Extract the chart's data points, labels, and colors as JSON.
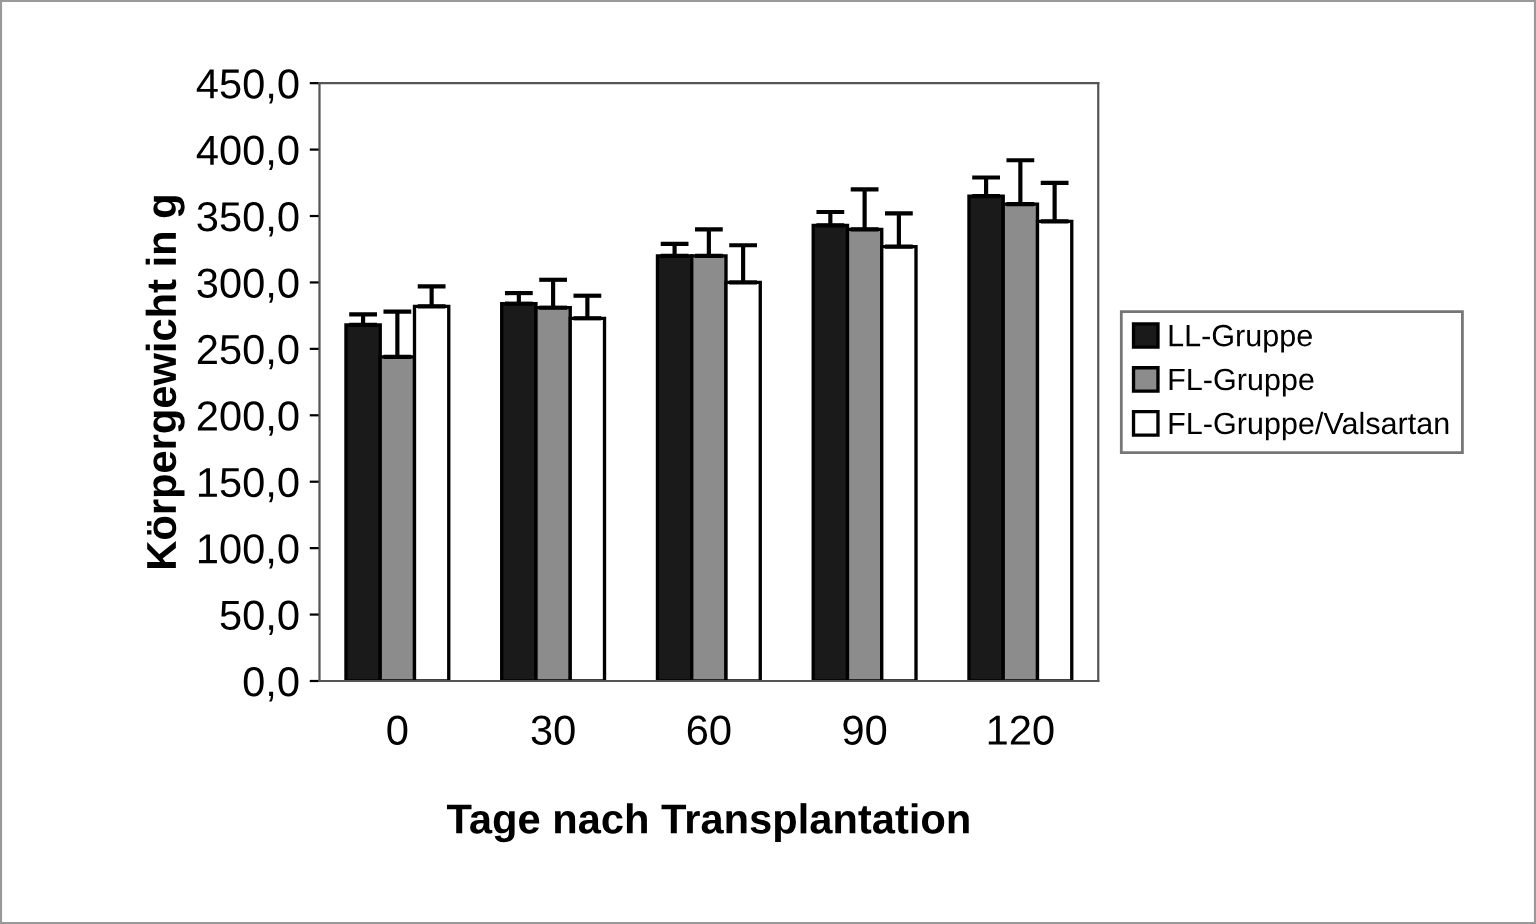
{
  "chart_data": {
    "type": "bar",
    "xlabel": "Tage nach Transplantation",
    "ylabel": "Körpergewicht in g",
    "categories": [
      "0",
      "30",
      "60",
      "90",
      "120"
    ],
    "series": [
      {
        "name": "LL-Gruppe",
        "color": "#1a1a1a",
        "values": [
          268,
          284,
          320,
          343,
          365
        ],
        "errors": [
          [
            268,
            276
          ],
          [
            284,
            292
          ],
          [
            320,
            329
          ],
          [
            343,
            353
          ],
          [
            365,
            379
          ]
        ]
      },
      {
        "name": "FL-Gruppe",
        "color": "#8c8c8c",
        "values": [
          244,
          281,
          320,
          340,
          359
        ],
        "errors": [
          [
            244,
            278
          ],
          [
            281,
            302
          ],
          [
            320,
            340
          ],
          [
            340,
            370
          ],
          [
            359,
            392
          ]
        ]
      },
      {
        "name": "FL-Gruppe/Valsartan",
        "color": "#ffffff",
        "values": [
          282,
          273,
          300,
          327,
          346
        ],
        "errors": [
          [
            282,
            297
          ],
          [
            273,
            290
          ],
          [
            300,
            328
          ],
          [
            327,
            352
          ],
          [
            346,
            375
          ]
        ]
      }
    ],
    "ylim": [
      0,
      450
    ],
    "yticks": [
      {
        "value": 0,
        "label": "0,0"
      },
      {
        "value": 50,
        "label": "50,0"
      },
      {
        "value": 100,
        "label": "100,0"
      },
      {
        "value": 150,
        "label": "150,0"
      },
      {
        "value": 200,
        "label": "200,0"
      },
      {
        "value": 250,
        "label": "250,0"
      },
      {
        "value": 300,
        "label": "300,0"
      },
      {
        "value": 350,
        "label": "350,0"
      },
      {
        "value": 400,
        "label": "400,0"
      },
      {
        "value": 450,
        "label": "450,0"
      }
    ],
    "grid": false,
    "legend": "right"
  }
}
